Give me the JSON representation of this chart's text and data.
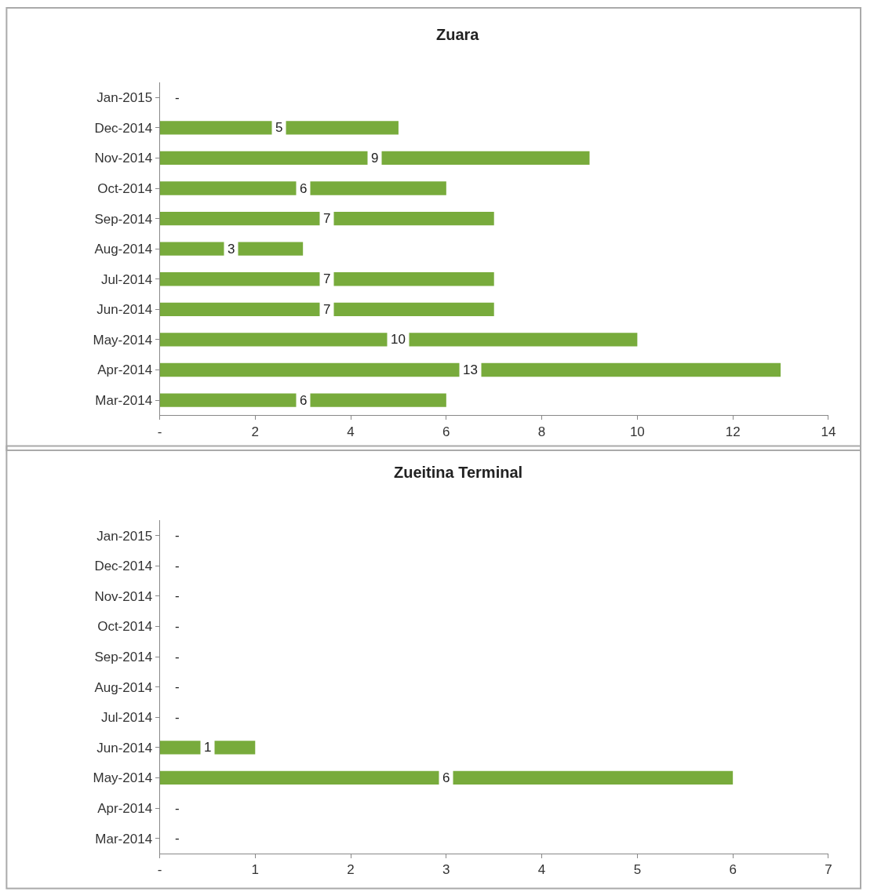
{
  "chart_data": [
    {
      "type": "bar",
      "title": "Zuara",
      "orientation": "horizontal",
      "categories": [
        "Jan-2015",
        "Dec-2014",
        "Nov-2014",
        "Oct-2014",
        "Sep-2014",
        "Aug-2014",
        "Jul-2014",
        "Jun-2014",
        "May-2014",
        "Apr-2014",
        "Mar-2014"
      ],
      "values": [
        0,
        5,
        9,
        6,
        7,
        3,
        7,
        7,
        10,
        13,
        6
      ],
      "value_labels": [
        "-",
        "5",
        "9",
        "6",
        "7",
        "3",
        "7",
        "7",
        "10",
        "13",
        "6"
      ],
      "color": "#78ab3c",
      "xlim": [
        0,
        14
      ],
      "xticks": [
        {
          "value": 0,
          "label": "-"
        },
        2,
        4,
        6,
        8,
        10,
        12,
        14
      ]
    },
    {
      "type": "bar",
      "title": "Zueitina Terminal",
      "orientation": "horizontal",
      "categories": [
        "Jan-2015",
        "Dec-2014",
        "Nov-2014",
        "Oct-2014",
        "Sep-2014",
        "Aug-2014",
        "Jul-2014",
        "Jun-2014",
        "May-2014",
        "Apr-2014",
        "Mar-2014"
      ],
      "values": [
        0,
        0,
        0,
        0,
        0,
        0,
        0,
        1,
        6,
        0,
        0
      ],
      "value_labels": [
        "-",
        "-",
        "-",
        "-",
        "-",
        "-",
        "-",
        "1",
        "6",
        "-",
        "-"
      ],
      "color": "#78ab3c",
      "xlim": [
        0,
        7
      ],
      "xticks": [
        {
          "value": 0,
          "label": "-"
        },
        1,
        2,
        3,
        4,
        5,
        6,
        7
      ]
    }
  ]
}
